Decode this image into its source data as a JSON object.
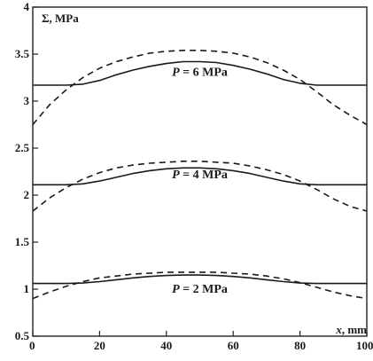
{
  "chart_data": {
    "type": "line",
    "xlabel_var": "x",
    "xlabel_unit": ", mm",
    "ylabel": "Σ, MPa",
    "xlim": [
      0,
      100
    ],
    "ylim": [
      0.5,
      4
    ],
    "x_ticks": [
      "0",
      "20",
      "40",
      "60",
      "80",
      "100"
    ],
    "y_ticks": [
      "0.5",
      "1",
      "1.5",
      "2",
      "2.5",
      "3",
      "3.5",
      "4"
    ],
    "grid": false,
    "annotations": [
      {
        "var": "P",
        "text": " = 6 MPa",
        "x": 50,
        "y": 3.27
      },
      {
        "var": "P",
        "text": " = 4 MPa",
        "x": 50,
        "y": 2.18
      },
      {
        "var": "P",
        "text": " = 2 MPa",
        "x": 50,
        "y": 0.96
      }
    ],
    "series": [
      {
        "style": "solid",
        "x": [
          0,
          10,
          15,
          20,
          25,
          30,
          35,
          40,
          45,
          50,
          55,
          60,
          65,
          70,
          75,
          80,
          85,
          90,
          100
        ],
        "y": [
          3.17,
          3.17,
          3.18,
          3.22,
          3.28,
          3.33,
          3.37,
          3.4,
          3.42,
          3.42,
          3.41,
          3.38,
          3.34,
          3.29,
          3.23,
          3.19,
          3.17,
          3.17,
          3.17
        ]
      },
      {
        "style": "dashed",
        "x": [
          0,
          5,
          10,
          15,
          20,
          25,
          30,
          35,
          40,
          45,
          50,
          55,
          60,
          65,
          70,
          75,
          80,
          85,
          90,
          95,
          100
        ],
        "y": [
          2.75,
          2.96,
          3.12,
          3.25,
          3.35,
          3.42,
          3.47,
          3.51,
          3.53,
          3.54,
          3.54,
          3.53,
          3.51,
          3.47,
          3.41,
          3.33,
          3.23,
          3.1,
          2.96,
          2.85,
          2.75
        ]
      },
      {
        "style": "solid",
        "x": [
          0,
          10,
          15,
          20,
          25,
          30,
          35,
          40,
          45,
          50,
          55,
          60,
          65,
          70,
          75,
          80,
          85,
          90,
          100
        ],
        "y": [
          2.11,
          2.11,
          2.12,
          2.15,
          2.19,
          2.23,
          2.26,
          2.28,
          2.29,
          2.29,
          2.28,
          2.26,
          2.23,
          2.19,
          2.15,
          2.12,
          2.11,
          2.11,
          2.11
        ]
      },
      {
        "style": "dashed",
        "x": [
          0,
          5,
          10,
          15,
          20,
          25,
          30,
          35,
          40,
          45,
          50,
          55,
          60,
          65,
          70,
          75,
          80,
          85,
          90,
          95,
          100
        ],
        "y": [
          1.83,
          1.97,
          2.08,
          2.17,
          2.24,
          2.29,
          2.32,
          2.34,
          2.35,
          2.36,
          2.36,
          2.35,
          2.34,
          2.31,
          2.27,
          2.22,
          2.15,
          2.06,
          1.96,
          1.88,
          1.83
        ]
      },
      {
        "style": "solid",
        "x": [
          0,
          10,
          15,
          20,
          25,
          30,
          35,
          40,
          45,
          50,
          55,
          60,
          65,
          70,
          75,
          80,
          85,
          90,
          100
        ],
        "y": [
          1.06,
          1.06,
          1.065,
          1.08,
          1.1,
          1.12,
          1.135,
          1.145,
          1.15,
          1.15,
          1.145,
          1.135,
          1.12,
          1.1,
          1.08,
          1.065,
          1.06,
          1.06,
          1.06
        ]
      },
      {
        "style": "dashed",
        "x": [
          0,
          5,
          10,
          15,
          20,
          25,
          30,
          35,
          40,
          45,
          50,
          55,
          60,
          65,
          70,
          75,
          80,
          85,
          90,
          95,
          100
        ],
        "y": [
          0.9,
          0.97,
          1.03,
          1.08,
          1.12,
          1.14,
          1.16,
          1.17,
          1.18,
          1.18,
          1.18,
          1.18,
          1.17,
          1.16,
          1.14,
          1.11,
          1.07,
          1.02,
          0.97,
          0.93,
          0.9
        ]
      }
    ]
  }
}
